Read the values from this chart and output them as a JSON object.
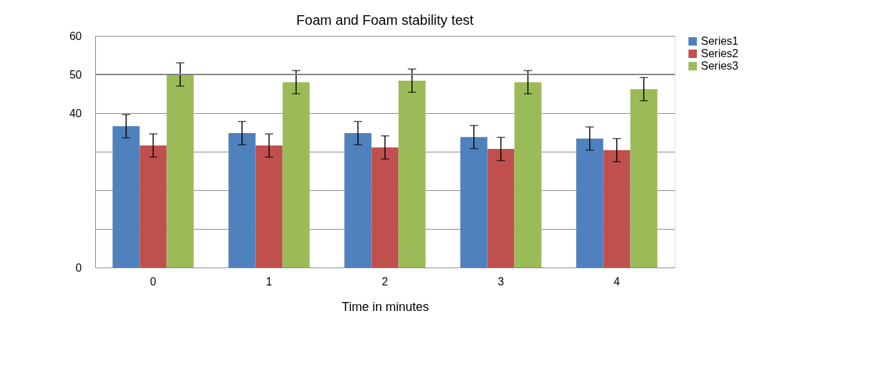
{
  "chart_data": {
    "type": "bar",
    "title": "Foam and Foam stability test",
    "xlabel": "Time in minutes",
    "categories": [
      "0",
      "1",
      "2",
      "3",
      "4"
    ],
    "series": [
      {
        "name": "Series1",
        "color": "#4f81bd",
        "values": [
          36.6,
          34.8,
          34.8,
          33.8,
          33.4
        ],
        "errors": [
          3,
          3,
          3,
          3,
          3
        ]
      },
      {
        "name": "Series2",
        "color": "#c0504d",
        "values": [
          31.6,
          31.6,
          31.1,
          30.7,
          30.4
        ],
        "errors": [
          3,
          3,
          3,
          3,
          3
        ]
      },
      {
        "name": "Series3",
        "color": "#9bbb59",
        "values": [
          50,
          48,
          48.4,
          48,
          46.2
        ],
        "errors": [
          3,
          3,
          3,
          3,
          3
        ]
      }
    ],
    "ylim": [
      0,
      60
    ],
    "yticks": [
      0,
      {
        "value": 10,
        "label": null
      },
      {
        "value": 20,
        "label": null
      },
      {
        "value": 30,
        "label": null
      },
      40,
      50,
      60
    ],
    "ref_lines": [
      {
        "axis": "y",
        "value": 50,
        "label": null,
        "color": "#808080"
      }
    ],
    "grid": "y",
    "legend": "right"
  }
}
